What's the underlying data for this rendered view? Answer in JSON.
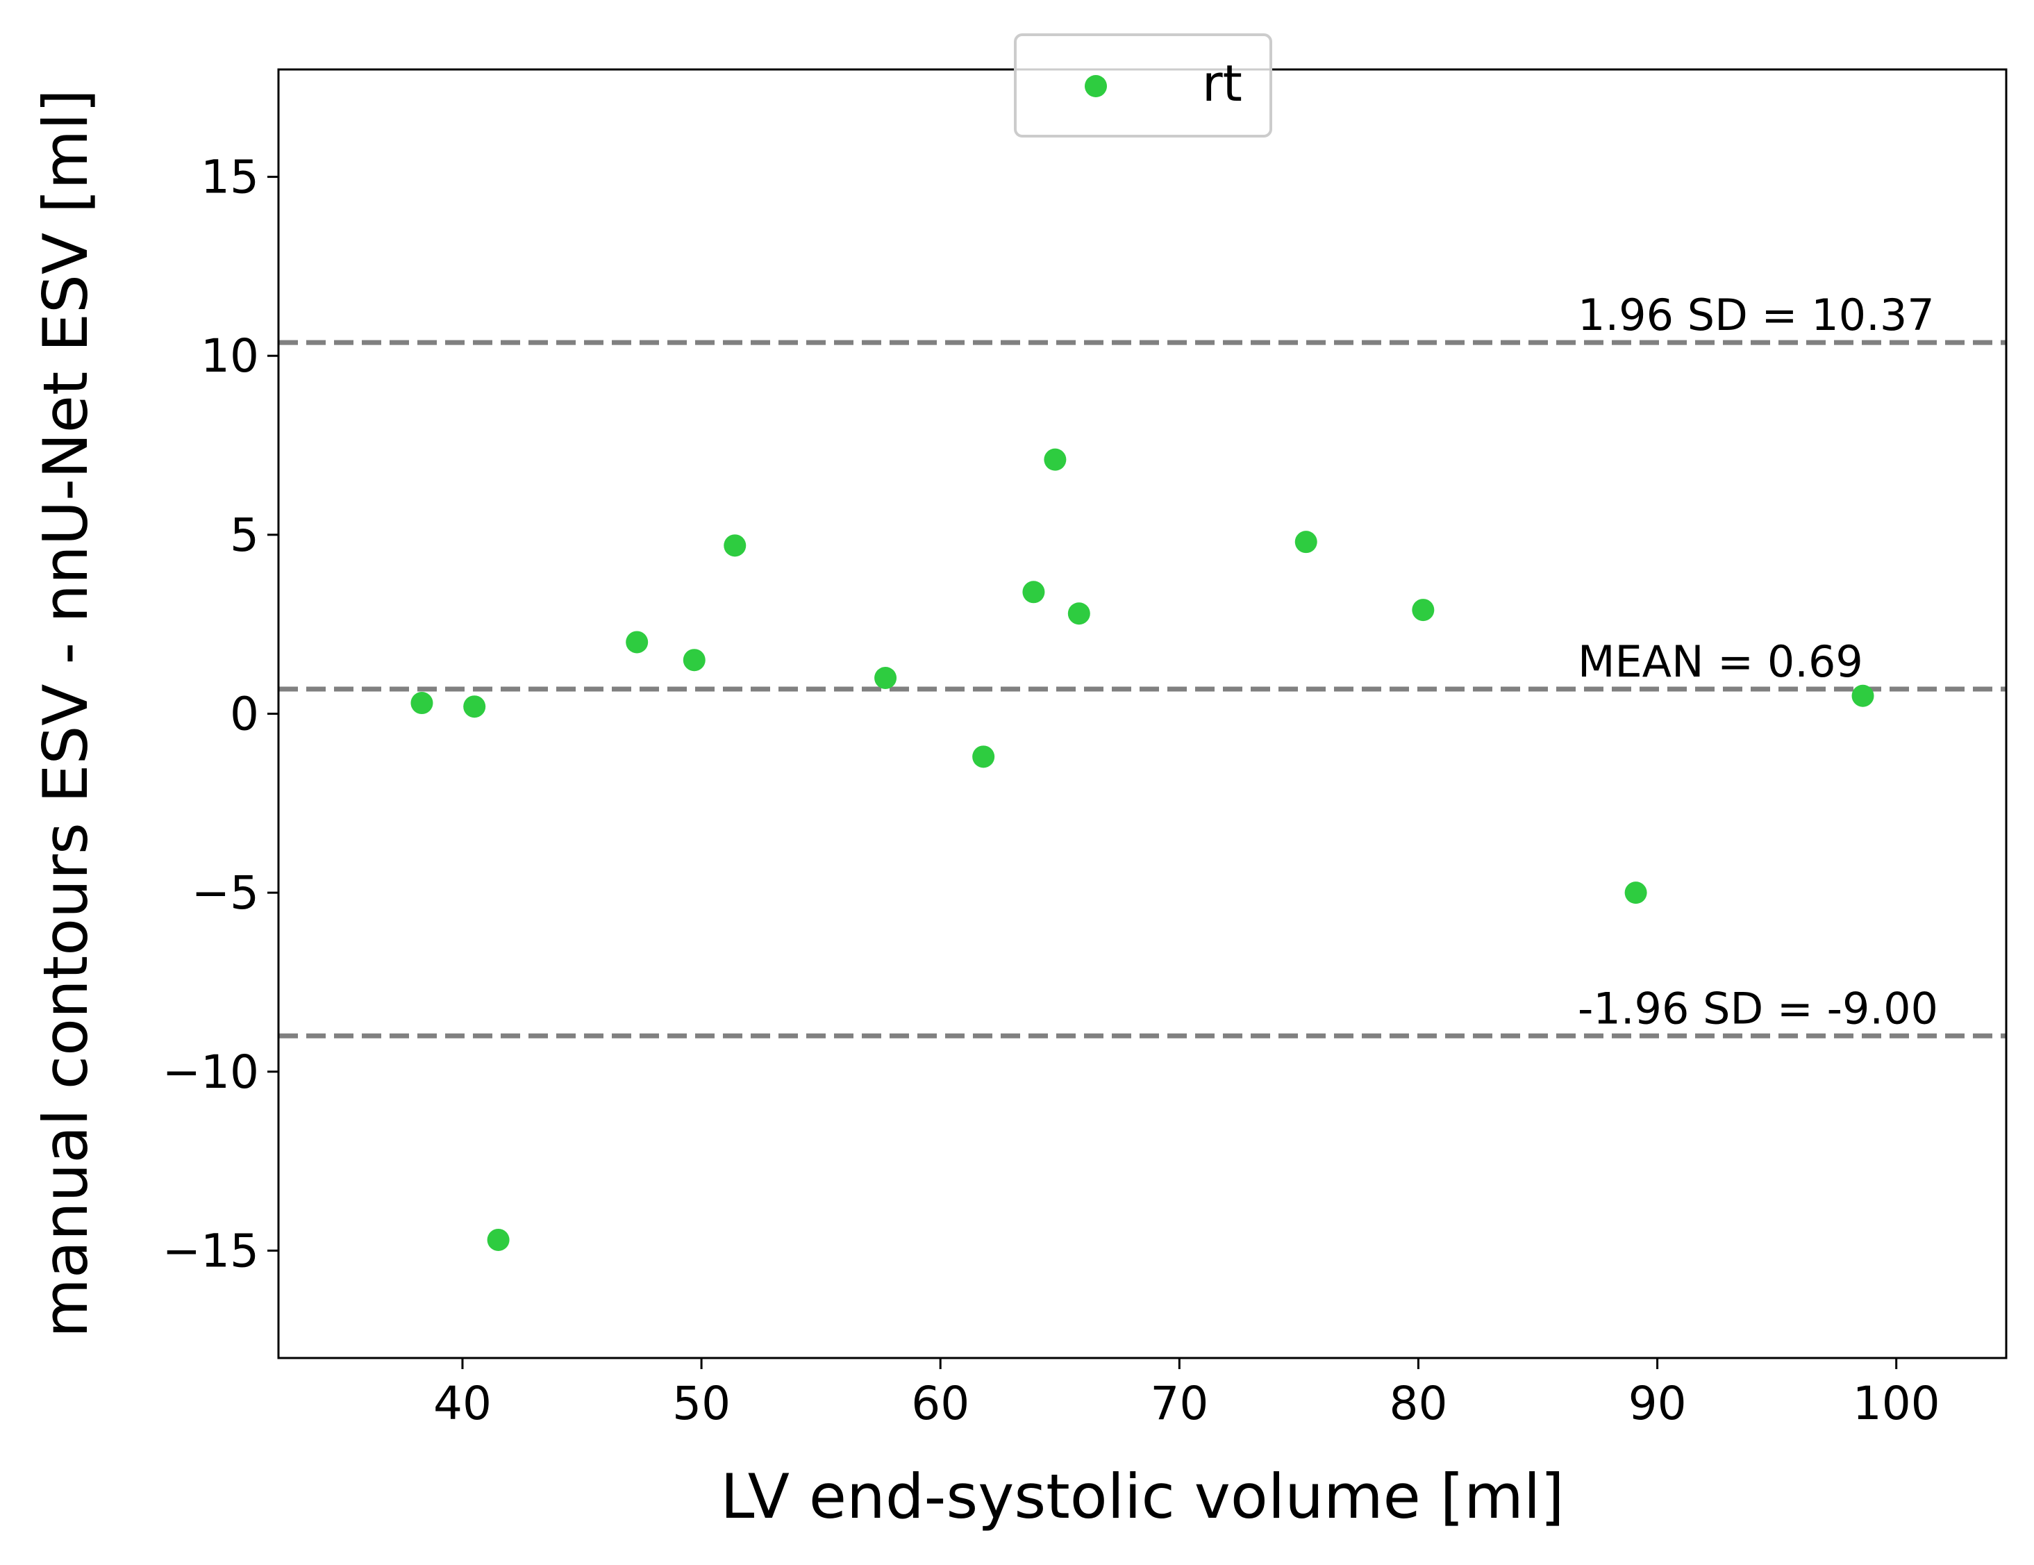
{
  "chart_data": {
    "type": "scatter",
    "title": "",
    "xlabel": "LV end-systolic volume [ml]",
    "ylabel": "manual contours ESV - nnU-Net ESV [ml]",
    "xlim": [
      32.3,
      104.6
    ],
    "ylim": [
      -18,
      18
    ],
    "xticks": [
      40,
      50,
      60,
      70,
      80,
      90,
      100
    ],
    "yticks": [
      -15,
      -10,
      -5,
      0,
      5,
      10,
      15
    ],
    "xtick_labels": [
      "40",
      "50",
      "60",
      "70",
      "80",
      "90",
      "100"
    ],
    "ytick_labels": [
      "−15",
      "−10",
      "−5",
      "0",
      "5",
      "10",
      "15"
    ],
    "grid": false,
    "legend_position": "top-center",
    "series": [
      {
        "name": "rt",
        "color": "#2ecc40",
        "x": [
          38.3,
          40.5,
          41.5,
          47.3,
          49.7,
          51.4,
          57.7,
          61.8,
          63.9,
          64.8,
          65.8,
          75.3,
          80.2,
          89.1,
          98.6
        ],
        "y": [
          0.3,
          0.2,
          -14.7,
          2.0,
          1.5,
          4.7,
          1.0,
          -1.2,
          3.4,
          7.1,
          2.8,
          4.8,
          2.9,
          -5.0,
          0.5
        ]
      }
    ],
    "reference_lines": [
      {
        "id": "upper",
        "y": 10.37,
        "label": "1.96 SD = 10.37",
        "color": "#808080"
      },
      {
        "id": "mean",
        "y": 0.69,
        "label": "MEAN = 0.69",
        "color": "#808080"
      },
      {
        "id": "lower",
        "y": -9.0,
        "label": "-1.96 SD = -9.00",
        "color": "#808080"
      }
    ]
  }
}
